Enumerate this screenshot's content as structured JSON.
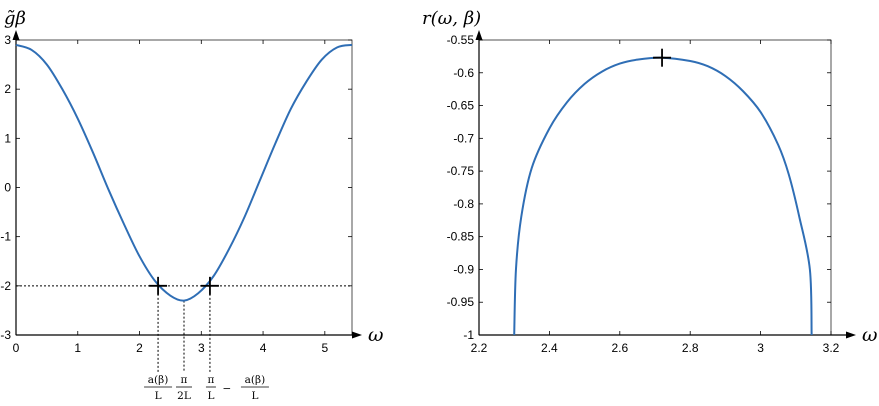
{
  "chart_data": [
    {
      "type": "line",
      "ylabel": "g̃β",
      "xlabel": "ω",
      "xlim": [
        0,
        5.44
      ],
      "ylim": [
        -3,
        3
      ],
      "x_ticks": [
        "0",
        "1",
        "2",
        "3",
        "4",
        "5"
      ],
      "y_ticks": [
        "3",
        "2",
        "1",
        "0",
        "-1",
        "-2",
        "-3"
      ],
      "grid": false,
      "series": [
        {
          "values_x": [
            0,
            0.25,
            0.5,
            0.75,
            1.0,
            1.25,
            1.5,
            1.75,
            2.0,
            2.25,
            2.5,
            2.72,
            2.95,
            3.2,
            3.45,
            3.7,
            3.95,
            4.2,
            4.45,
            4.7,
            4.95,
            5.2,
            5.44
          ],
          "values_y": [
            2.9,
            2.8,
            2.5,
            2.0,
            1.4,
            0.7,
            -0.05,
            -0.75,
            -1.4,
            -1.9,
            -2.2,
            -2.3,
            -2.15,
            -1.8,
            -1.25,
            -0.6,
            0.15,
            0.9,
            1.6,
            2.15,
            2.6,
            2.85,
            2.9
          ]
        }
      ],
      "reference_line_y": -2,
      "markers": [
        {
          "x": 2.3,
          "y": -2
        },
        {
          "x": 3.14,
          "y": -2
        }
      ],
      "vertical_guides_x": [
        2.3,
        2.72,
        3.14
      ],
      "guide_labels": [
        {
          "num": "a(β)",
          "den": "L"
        },
        {
          "num": "π",
          "den": "2L"
        },
        {
          "num": "π",
          "den": "L",
          "minus": "−",
          "num2": "a(β)",
          "den2": "L"
        }
      ]
    },
    {
      "type": "line",
      "ylabel": "r(ω, β)",
      "xlabel": "ω",
      "xlim": [
        2.2,
        3.2
      ],
      "ylim": [
        -1,
        -0.55
      ],
      "x_ticks": [
        "2.2",
        "2.4",
        "2.6",
        "2.8",
        "3",
        "3.2"
      ],
      "y_ticks": [
        "-0.55",
        "-0.6",
        "-0.65",
        "-0.7",
        "-0.75",
        "-0.8",
        "-0.85",
        "-0.9",
        "-0.95",
        "-1"
      ],
      "grid": false,
      "series": [
        {
          "values_x": [
            2.3,
            2.305,
            2.32,
            2.35,
            2.4,
            2.45,
            2.5,
            2.55,
            2.6,
            2.65,
            2.72,
            2.8,
            2.85,
            2.9,
            2.95,
            3.0,
            3.05,
            3.08,
            3.11,
            3.14,
            3.145
          ],
          "values_y": [
            -1.0,
            -0.9,
            -0.82,
            -0.745,
            -0.685,
            -0.645,
            -0.617,
            -0.598,
            -0.586,
            -0.58,
            -0.577,
            -0.582,
            -0.59,
            -0.605,
            -0.628,
            -0.66,
            -0.71,
            -0.755,
            -0.82,
            -0.9,
            -1.0
          ]
        }
      ],
      "markers": [
        {
          "x": 2.72,
          "y": -0.577
        }
      ]
    }
  ]
}
